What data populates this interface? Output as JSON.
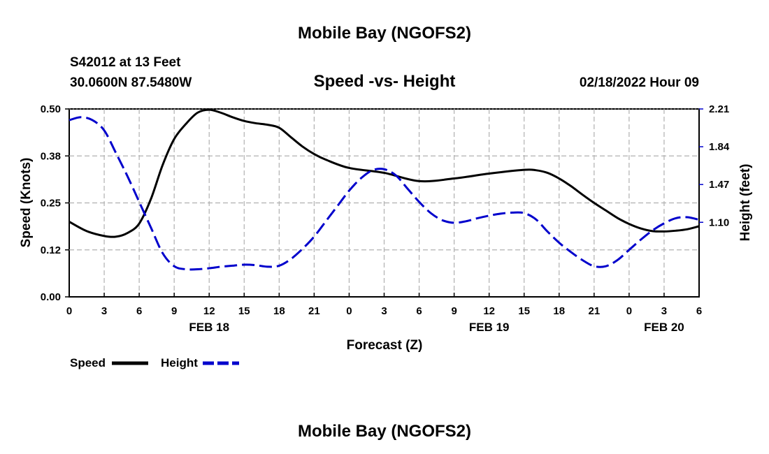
{
  "chart_data": {
    "type": "line",
    "title": "Mobile Bay (NGOFS2)",
    "footer_title": "Mobile Bay (NGOFS2)",
    "subtitle": "Speed -vs- Height",
    "station": "S42012 at 13 Feet",
    "location": "30.0600N  87.5480W",
    "datetime": "02/18/2022 Hour 09",
    "xlabel": "Forecast (Z)",
    "ylabel_left": "Speed (Knots)",
    "ylabel_right": "Height (feet)",
    "x_range": [
      0,
      54
    ],
    "x_ticks": [
      0,
      3,
      6,
      9,
      12,
      15,
      18,
      21,
      24,
      27,
      30,
      33,
      36,
      39,
      42,
      45,
      48,
      51,
      54
    ],
    "x_tick_labels": [
      "0",
      "3",
      "6",
      "9",
      "12",
      "15",
      "18",
      "21",
      "0",
      "3",
      "6",
      "9",
      "12",
      "15",
      "18",
      "21",
      "0",
      "3",
      "6"
    ],
    "date_labels": [
      {
        "x": 12,
        "label": "FEB 18"
      },
      {
        "x": 36,
        "label": "FEB 19"
      },
      {
        "x": 51,
        "label": "FEB 20"
      }
    ],
    "y_left_range": [
      0,
      0.5
    ],
    "y_left_ticks": [
      0,
      0.125,
      0.25,
      0.375,
      0.5
    ],
    "y_left_tick_labels": [
      "0.00",
      "0.12",
      "0.25",
      "0.38",
      "0.50"
    ],
    "y_right_range": [
      0.37,
      2.21
    ],
    "y_right_ticks": [
      1.1,
      1.47,
      1.84,
      2.21
    ],
    "y_right_tick_labels": [
      "1.10",
      "1.47",
      "1.84",
      "2.21"
    ],
    "grid": true,
    "series": [
      {
        "name": "Speed",
        "axis": "left",
        "color": "#000000",
        "style": "solid",
        "x": [
          0,
          1.5,
          3,
          4,
          5,
          6,
          7,
          8,
          9,
          10,
          11,
          12,
          13,
          14,
          15,
          16,
          17,
          18,
          19,
          20,
          21,
          22,
          24,
          27,
          30,
          33,
          36,
          39,
          40,
          41,
          42,
          43,
          44,
          45,
          46,
          47,
          48,
          49,
          50,
          51,
          52,
          53,
          54
        ],
        "values": [
          0.2,
          0.175,
          0.162,
          0.16,
          0.17,
          0.195,
          0.26,
          0.35,
          0.42,
          0.46,
          0.49,
          0.498,
          0.49,
          0.478,
          0.468,
          0.462,
          0.458,
          0.45,
          0.425,
          0.4,
          0.38,
          0.365,
          0.343,
          0.33,
          0.308,
          0.315,
          0.328,
          0.338,
          0.337,
          0.33,
          0.315,
          0.295,
          0.272,
          0.25,
          0.23,
          0.21,
          0.194,
          0.182,
          0.175,
          0.174,
          0.176,
          0.18,
          0.188
        ]
      },
      {
        "name": "Height",
        "axis": "right",
        "color": "#0000cc",
        "style": "dashed",
        "x": [
          0,
          1,
          2,
          3,
          4,
          5,
          6,
          7,
          8,
          9,
          10,
          11,
          12,
          13,
          14,
          15,
          16,
          17,
          18,
          19,
          20,
          21,
          22,
          23,
          24,
          25,
          26,
          27,
          28,
          29,
          30,
          31,
          32,
          33,
          34,
          35,
          36,
          37,
          38,
          39,
          40,
          41,
          42,
          43,
          44,
          45,
          46,
          47,
          48,
          49,
          50,
          51,
          52,
          53,
          54
        ],
        "values": [
          2.1,
          2.13,
          2.1,
          2.0,
          1.78,
          1.55,
          1.3,
          1.05,
          0.8,
          0.67,
          0.64,
          0.64,
          0.65,
          0.665,
          0.675,
          0.685,
          0.68,
          0.665,
          0.675,
          0.74,
          0.84,
          0.96,
          1.11,
          1.26,
          1.41,
          1.53,
          1.61,
          1.62,
          1.56,
          1.43,
          1.3,
          1.19,
          1.12,
          1.095,
          1.11,
          1.14,
          1.165,
          1.185,
          1.195,
          1.19,
          1.13,
          1.01,
          0.9,
          0.81,
          0.73,
          0.67,
          0.67,
          0.73,
          0.83,
          0.93,
          1.02,
          1.09,
          1.14,
          1.15,
          1.125
        ]
      }
    ],
    "legend": [
      {
        "label": "Speed",
        "color": "#000000",
        "style": "solid"
      },
      {
        "label": "Height",
        "color": "#0000cc",
        "style": "dashed"
      }
    ]
  }
}
